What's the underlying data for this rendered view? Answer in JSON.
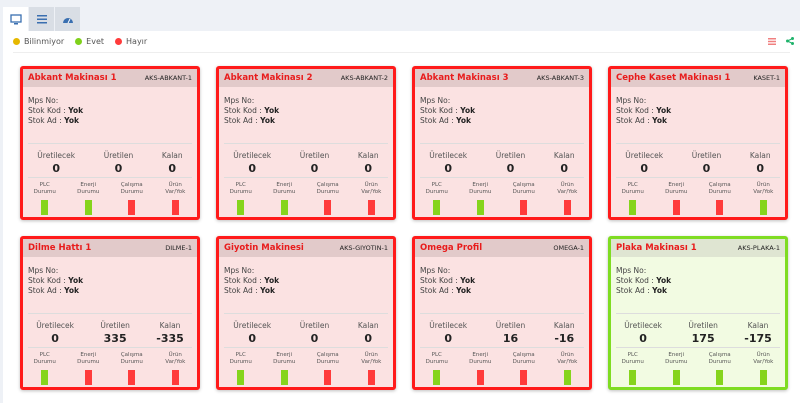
{
  "tabs": [
    {
      "icon": "monitor-icon"
    },
    {
      "icon": "list-icon"
    },
    {
      "icon": "dashboard-gauge-icon"
    }
  ],
  "legend": [
    {
      "label": "Bilinmiyor",
      "color": "#e6b800"
    },
    {
      "label": "Evet",
      "color": "#7fd11b"
    },
    {
      "label": "Hayır",
      "color": "#ff3b3b"
    }
  ],
  "labels": {
    "mps": "Mps No:",
    "stok_kod": "Stok Kod :",
    "stok_ad": "Stok Ad :",
    "uretilecek": "Üretilecek",
    "uretilen": "Üretilen",
    "kalan": "Kalan",
    "plc": [
      "PLC",
      "Durumu"
    ],
    "enerji": [
      "Enerji",
      "Durumu"
    ],
    "calisma": [
      "Çalışma",
      "Durumu"
    ],
    "urun": [
      "Ürün",
      "Var/Yok"
    ]
  },
  "colors": {
    "evet": "#86d41c",
    "hayir": "#ff3b3b"
  },
  "machines": [
    {
      "name": "Abkant Makinası 1",
      "code": "AKS-ABKANT-1",
      "stok_kod": "Yok",
      "stok_ad": "Yok",
      "uretilecek": "0",
      "uretilen": "0",
      "kalan": "0",
      "ok": false,
      "status": [
        "evet",
        "evet",
        "hayir",
        "hayir"
      ]
    },
    {
      "name": "Abkant Makinası 2",
      "code": "AKS-ABKANT-2",
      "stok_kod": "Yok",
      "stok_ad": "Yok",
      "uretilecek": "0",
      "uretilen": "0",
      "kalan": "0",
      "ok": false,
      "status": [
        "evet",
        "evet",
        "hayir",
        "hayir"
      ]
    },
    {
      "name": "Abkant Makinası 3",
      "code": "AKS-ABKANT-3",
      "stok_kod": "Yok",
      "stok_ad": "Yok",
      "uretilecek": "0",
      "uretilen": "0",
      "kalan": "0",
      "ok": false,
      "status": [
        "evet",
        "evet",
        "hayir",
        "hayir"
      ]
    },
    {
      "name": "Cephe Kaset Makinası 1",
      "code": "KASET-1",
      "stok_kod": "Yok",
      "stok_ad": "Yok",
      "uretilecek": "0",
      "uretilen": "0",
      "kalan": "0",
      "ok": false,
      "status": [
        "evet",
        "hayir",
        "hayir",
        "evet"
      ]
    },
    {
      "name": "Dilme Hattı 1",
      "code": "DILME-1",
      "stok_kod": "Yok",
      "stok_ad": "Yok",
      "uretilecek": "0",
      "uretilen": "335",
      "kalan": "-335",
      "ok": false,
      "status": [
        "evet",
        "hayir",
        "hayir",
        "hayir"
      ]
    },
    {
      "name": "Giyotin Makinesi",
      "code": "AKS-GIYOTIN-1",
      "stok_kod": "Yok",
      "stok_ad": "Yok",
      "uretilecek": "0",
      "uretilen": "0",
      "kalan": "0",
      "ok": false,
      "status": [
        "evet",
        "evet",
        "hayir",
        "hayir"
      ]
    },
    {
      "name": "Omega Profil",
      "code": "OMEGA-1",
      "stok_kod": "Yok",
      "stok_ad": "Yok",
      "uretilecek": "0",
      "uretilen": "16",
      "kalan": "-16",
      "ok": false,
      "status": [
        "evet",
        "hayir",
        "hayir",
        "evet"
      ]
    },
    {
      "name": "Plaka Makinası 1",
      "code": "AKS-PLAKA-1",
      "stok_kod": "Yok",
      "stok_ad": "Yok",
      "uretilecek": "0",
      "uretilen": "175",
      "kalan": "-175",
      "ok": true,
      "status": [
        "evet",
        "evet",
        "evet",
        "evet"
      ]
    }
  ]
}
